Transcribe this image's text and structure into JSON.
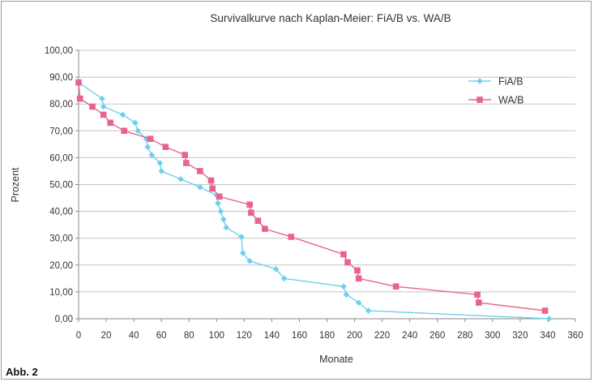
{
  "figure_label": "Abb. 2",
  "colors": {
    "fia": "#6fd0ee",
    "wa": "#e8648a",
    "grid": "#c4c4c4",
    "axis": "#8a8a8a"
  },
  "chart_data": {
    "type": "line",
    "title": "Survivalkurve nach Kaplan-Meier: FiA/B vs. WA/B",
    "xlabel": "Monate",
    "ylabel": "Prozent",
    "xlim": [
      0,
      360
    ],
    "ylim": [
      0,
      100
    ],
    "x_ticks": [
      "0",
      "20",
      "40",
      "60",
      "80",
      "100",
      "120",
      "140",
      "160",
      "180",
      "200",
      "220",
      "240",
      "260",
      "280",
      "300",
      "320",
      "340",
      "360"
    ],
    "y_ticks": [
      "0,00",
      "10,00",
      "20,00",
      "30,00",
      "40,00",
      "50,00",
      "60,00",
      "70,00",
      "80,00",
      "90,00",
      "100,00"
    ],
    "grid": {
      "horizontal": true,
      "vertical": false
    },
    "legend_position": "top-right",
    "series": [
      {
        "name": "FiA/B",
        "marker": "diamond",
        "points": [
          [
            0,
            88
          ],
          [
            17,
            82
          ],
          [
            18,
            79
          ],
          [
            32,
            76
          ],
          [
            41,
            73
          ],
          [
            43,
            70
          ],
          [
            49,
            67
          ],
          [
            50,
            64
          ],
          [
            53,
            61
          ],
          [
            59,
            58
          ],
          [
            60,
            55
          ],
          [
            74,
            52
          ],
          [
            88,
            49
          ],
          [
            100,
            46
          ],
          [
            101,
            43
          ],
          [
            103,
            40
          ],
          [
            105,
            37
          ],
          [
            107,
            34
          ],
          [
            118,
            30.5
          ],
          [
            119,
            24.5
          ],
          [
            124,
            21.5
          ],
          [
            143,
            18.5
          ],
          [
            149,
            15
          ],
          [
            192,
            12
          ],
          [
            194,
            9
          ],
          [
            203,
            6
          ],
          [
            210,
            3
          ],
          [
            341,
            0
          ]
        ]
      },
      {
        "name": "WA/B",
        "marker": "square",
        "points": [
          [
            0,
            88
          ],
          [
            1,
            82
          ],
          [
            10,
            79
          ],
          [
            18,
            76
          ],
          [
            23,
            73
          ],
          [
            33,
            70
          ],
          [
            52,
            67
          ],
          [
            63,
            64
          ],
          [
            77,
            61
          ],
          [
            78,
            58
          ],
          [
            88,
            55
          ],
          [
            96,
            51.5
          ],
          [
            97,
            48.5
          ],
          [
            102,
            45.5
          ],
          [
            124,
            42.5
          ],
          [
            125,
            39.5
          ],
          [
            130,
            36.5
          ],
          [
            135,
            33.5
          ],
          [
            154,
            30.5
          ],
          [
            192,
            24
          ],
          [
            195,
            21
          ],
          [
            202,
            18
          ],
          [
            203,
            15
          ],
          [
            230,
            12
          ],
          [
            289,
            9
          ],
          [
            290,
            6
          ],
          [
            338,
            3
          ]
        ]
      }
    ]
  }
}
